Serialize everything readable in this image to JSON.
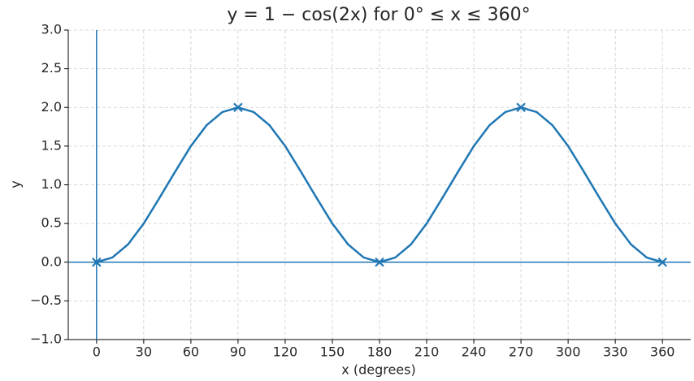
{
  "chart_data": {
    "type": "line",
    "title": "y = 1 − cos(2x)  for  0° ≤ x ≤ 360°",
    "x_label": "x (degrees)",
    "y_label": "y",
    "x": [
      0,
      10,
      20,
      30,
      40,
      50,
      60,
      70,
      80,
      90,
      100,
      110,
      120,
      130,
      140,
      150,
      160,
      170,
      180,
      190,
      200,
      210,
      220,
      230,
      240,
      250,
      260,
      270,
      280,
      290,
      300,
      310,
      320,
      330,
      340,
      350,
      360
    ],
    "values": [
      0,
      0.06,
      0.23,
      0.5,
      0.83,
      1.17,
      1.5,
      1.77,
      1.94,
      2,
      1.94,
      1.77,
      1.5,
      1.17,
      0.83,
      0.5,
      0.23,
      0.06,
      0,
      0.06,
      0.23,
      0.5,
      0.83,
      1.17,
      1.5,
      1.77,
      1.94,
      2,
      1.94,
      1.77,
      1.5,
      1.17,
      0.83,
      0.5,
      0.23,
      0.06,
      0
    ],
    "color": "#1f77b4",
    "points": {
      "x": [
        0,
        90,
        180,
        270,
        360
      ],
      "values": [
        0,
        2,
        0,
        2,
        0
      ],
      "marker": "x"
    },
    "axhline": 0,
    "axvline": 0,
    "xlim": [
      -18,
      378
    ],
    "ylim": [
      -1,
      3
    ],
    "xticks": [
      0,
      30,
      60,
      90,
      120,
      150,
      180,
      210,
      240,
      270,
      300,
      330,
      360
    ],
    "yticks": [
      {
        "value": -1,
        "label": "−1.0"
      },
      {
        "value": -0.5,
        "label": "−0.5"
      },
      {
        "value": 0,
        "label": "0.0"
      },
      0.5,
      {
        "value": 1,
        "label": "1.0"
      },
      1.5,
      {
        "value": 2,
        "label": "2.0"
      },
      2.5,
      {
        "value": 3,
        "label": "3.0"
      }
    ],
    "grid": true
  }
}
